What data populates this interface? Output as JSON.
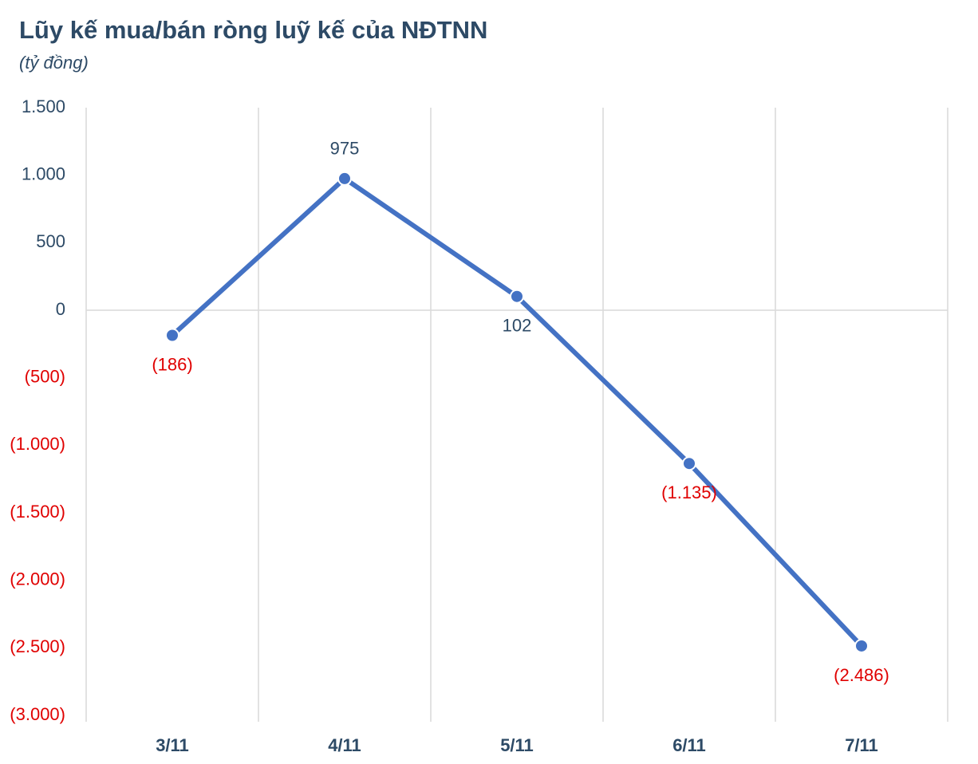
{
  "chart_data": {
    "type": "line",
    "title": "Lũy kế mua/bán ròng luỹ kế của NĐTNN",
    "subtitle": "(tỷ đồng)",
    "categories": [
      "3/11",
      "4/11",
      "5/11",
      "6/11",
      "7/11"
    ],
    "series": [
      {
        "name": "Lũy kế mua/bán ròng",
        "color": "#4472c4",
        "values": [
          -186,
          975,
          102,
          -1135,
          -2486
        ],
        "value_labels": [
          "(186)",
          "975",
          "102",
          "(1.135)",
          "(2.486)"
        ]
      }
    ],
    "ylim": [
      -3000,
      1500
    ],
    "yticks": [
      {
        "value": 1500,
        "label": "1.500"
      },
      {
        "value": 1000,
        "label": "1.000"
      },
      500,
      0,
      {
        "value": -500,
        "label": "(500)"
      },
      {
        "value": -1000,
        "label": "(1.000)"
      },
      {
        "value": -1500,
        "label": "(1.500)"
      },
      {
        "value": -2000,
        "label": "(2.000)"
      },
      {
        "value": -2500,
        "label": "(2.500)"
      },
      {
        "value": -3000,
        "label": "(3.000)"
      }
    ],
    "positive_color": "#2d4a66",
    "negative_color": "#e00000"
  }
}
